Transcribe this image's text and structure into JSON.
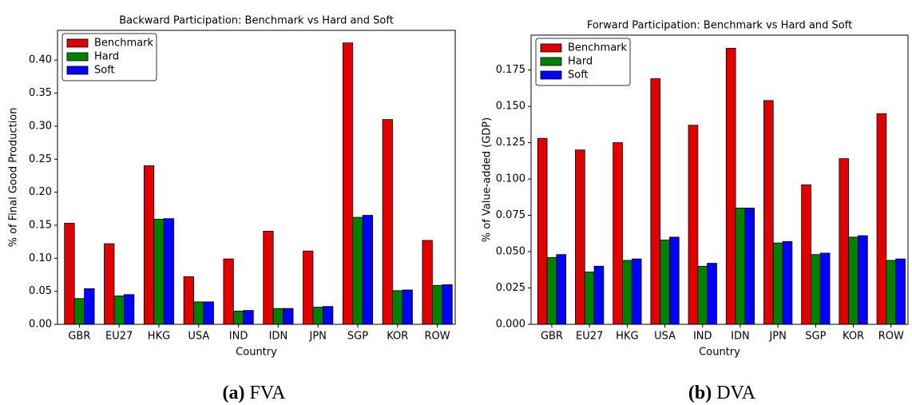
{
  "chart_data": [
    {
      "type": "bar",
      "title": "Backward Participation: Benchmark vs Hard and Soft",
      "xlabel": "Country",
      "ylabel": "% of Final Good Production",
      "categories": [
        "GBR",
        "EU27",
        "HKG",
        "USA",
        "IND",
        "IDN",
        "JPN",
        "SGP",
        "KOR",
        "ROW"
      ],
      "series": [
        {
          "name": "Benchmark",
          "color": "#e00000",
          "values": [
            0.153,
            0.122,
            0.24,
            0.072,
            0.099,
            0.141,
            0.111,
            0.426,
            0.31,
            0.127
          ]
        },
        {
          "name": "Hard",
          "color": "#008000",
          "values": [
            0.039,
            0.043,
            0.159,
            0.034,
            0.02,
            0.024,
            0.026,
            0.162,
            0.051,
            0.059
          ]
        },
        {
          "name": "Soft",
          "color": "#0000ff",
          "values": [
            0.054,
            0.045,
            0.16,
            0.034,
            0.021,
            0.024,
            0.027,
            0.165,
            0.052,
            0.06
          ]
        }
      ],
      "ylim": [
        0,
        0.445
      ],
      "yticks": [
        {
          "value": 0,
          "label": "0.00"
        },
        {
          "value": 0.05,
          "label": "0.05"
        },
        {
          "value": 0.1,
          "label": "0.10"
        },
        {
          "value": 0.15,
          "label": "0.15"
        },
        {
          "value": 0.2,
          "label": "0.20"
        },
        {
          "value": 0.25,
          "label": "0.25"
        },
        {
          "value": 0.3,
          "label": "0.30"
        },
        {
          "value": 0.35,
          "label": "0.35"
        },
        {
          "value": 0.4,
          "label": "0.40"
        }
      ],
      "legend": "upper left"
    },
    {
      "type": "bar",
      "title": "Forward Participation: Benchmark vs Hard and Soft",
      "xlabel": "Country",
      "ylabel": "% of Value-added (GDP)",
      "categories": [
        "GBR",
        "EU27",
        "HKG",
        "USA",
        "IND",
        "IDN",
        "JPN",
        "SGP",
        "KOR",
        "ROW"
      ],
      "series": [
        {
          "name": "Benchmark",
          "color": "#e00000",
          "values": [
            0.128,
            0.12,
            0.125,
            0.169,
            0.137,
            0.19,
            0.154,
            0.096,
            0.114,
            0.145
          ]
        },
        {
          "name": "Hard",
          "color": "#008000",
          "values": [
            0.046,
            0.036,
            0.044,
            0.058,
            0.04,
            0.08,
            0.056,
            0.048,
            0.06,
            0.044
          ]
        },
        {
          "name": "Soft",
          "color": "#0000ff",
          "values": [
            0.048,
            0.04,
            0.045,
            0.06,
            0.042,
            0.08,
            0.057,
            0.049,
            0.061,
            0.045
          ]
        }
      ],
      "ylim": [
        0,
        0.199
      ],
      "yticks": [
        {
          "value": 0,
          "label": "0.000"
        },
        {
          "value": 0.025,
          "label": "0.025"
        },
        {
          "value": 0.05,
          "label": "0.050"
        },
        {
          "value": 0.075,
          "label": "0.075"
        },
        {
          "value": 0.1,
          "label": "0.100"
        },
        {
          "value": 0.125,
          "label": "0.125"
        },
        {
          "value": 0.15,
          "label": "0.150"
        },
        {
          "value": 0.175,
          "label": "0.175"
        }
      ],
      "legend": "upper left"
    }
  ],
  "captions": [
    {
      "label": "(a)",
      "text": "FVA"
    },
    {
      "label": "(b)",
      "text": "DVA"
    }
  ]
}
